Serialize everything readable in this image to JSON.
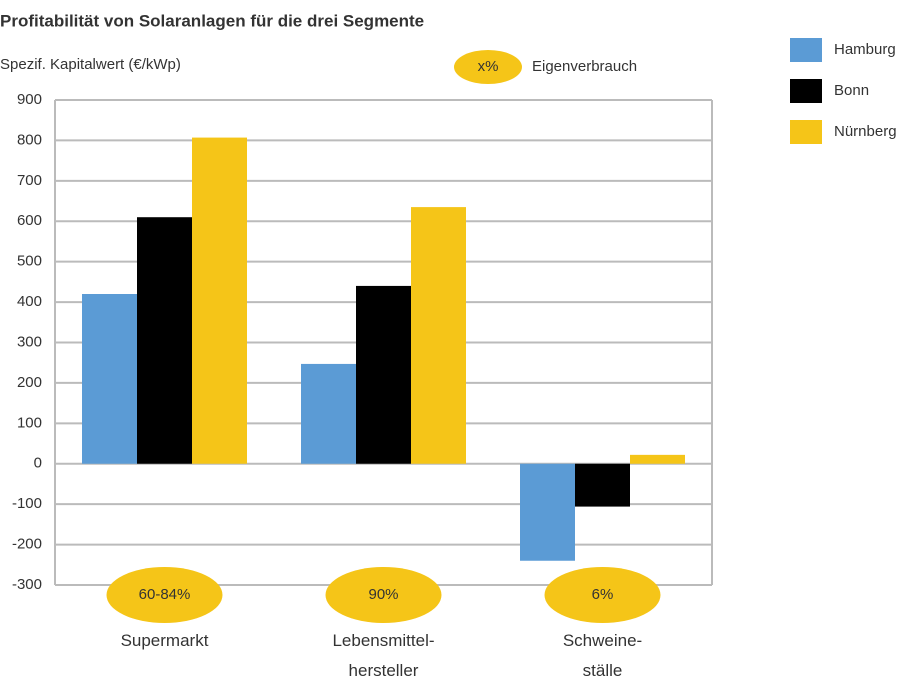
{
  "chart_data": {
    "type": "bar",
    "title": "Profitabilität von Solaranlagen für die drei Segmente",
    "y_label": "Spezif. Kapitalwert (€/kWp)",
    "note": {
      "symbol": "x%",
      "text": "Eigenverbrauch"
    },
    "categories": [
      "Supermarkt",
      "Lebensmittel-\nhersteller",
      "Schweine-\nställe"
    ],
    "share_labels": [
      "60-84%",
      "90%",
      "6%"
    ],
    "series": [
      {
        "name": "Hamburg",
        "color": "#5b9bd5",
        "values": [
          420,
          247,
          -240
        ]
      },
      {
        "name": "Bonn",
        "color": "#000000",
        "values": [
          610,
          440,
          -106
        ]
      },
      {
        "name": "Nürnberg",
        "color": "#f5c518",
        "values": [
          807,
          635,
          22
        ]
      }
    ],
    "ylim": [
      -300,
      900
    ],
    "yticks": [
      -300,
      -200,
      -100,
      0,
      100,
      200,
      300,
      400,
      500,
      600,
      700,
      800,
      900
    ],
    "grid": true
  }
}
